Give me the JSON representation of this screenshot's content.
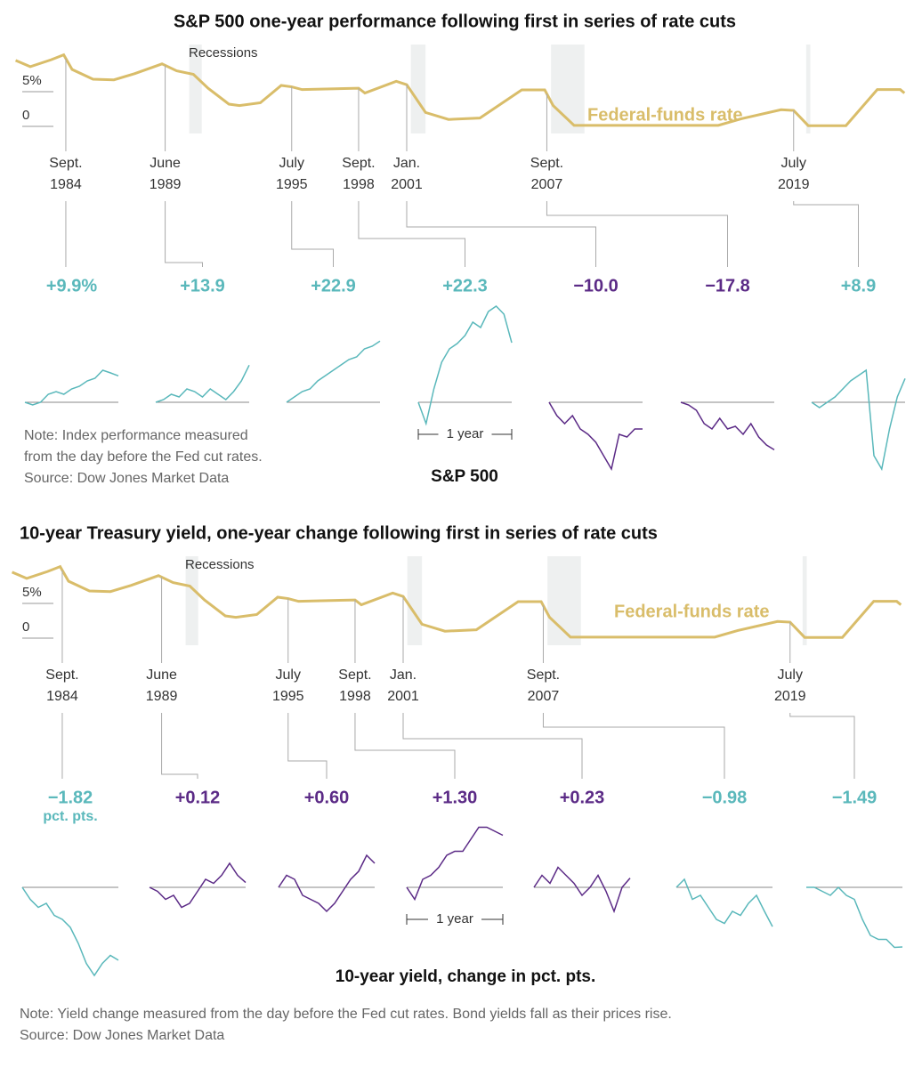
{
  "chart_data": [
    {
      "type": "small-multiples",
      "title": "S&P 500 one-year performance following first in series of rate cuts",
      "recessions_label": "Recessions",
      "rate_label": "Federal-funds rate",
      "rate_color": "#d9bd6a",
      "ylim": [
        0,
        10
      ],
      "yticks": [
        {
          "value": 5,
          "label": "5%"
        },
        0
      ],
      "rate": {
        "x": [
          1982.3,
          1983,
          1984,
          1984.6,
          1985,
          1986,
          1987,
          1988,
          1989.3,
          1990,
          1990.8,
          1991.5,
          1992.5,
          1993,
          1994,
          1995,
          1995.5,
          1996,
          1998.7,
          1999,
          2000.5,
          2001,
          2001.9,
          2003,
          2004.5,
          2006.5,
          2007.6,
          2008,
          2009,
          2015.9,
          2017,
          2018.9,
          2019.5,
          2020.2,
          2022,
          2023.5,
          2024.6,
          2024.8
        ],
        "values": [
          9.5,
          8.6,
          9.6,
          10.3,
          8.2,
          6.8,
          6.7,
          7.6,
          9.0,
          8.0,
          7.5,
          5.5,
          3.2,
          3,
          3.4,
          5.9,
          5.7,
          5.3,
          5.5,
          4.8,
          6.5,
          6,
          2,
          1,
          1.2,
          5.25,
          5.25,
          3,
          0.15,
          0.15,
          1.1,
          2.4,
          2.3,
          0.1,
          0.1,
          5.3,
          5.3,
          4.8
        ]
      },
      "recessions": [
        [
          1990.6,
          1991.2
        ],
        [
          2001.2,
          2001.9
        ],
        [
          2007.9,
          2009.5
        ],
        [
          2020.1,
          2020.3
        ]
      ],
      "events": [
        {
          "x": 1984.7,
          "date_label": [
            "Sept.",
            "1984"
          ],
          "value_label": "+9.9%",
          "color": "#5ab8bb",
          "values": [
            0,
            -1,
            0,
            3,
            4,
            3,
            5,
            6,
            8,
            9,
            12,
            11,
            9.9
          ]
        },
        {
          "x": 1989.45,
          "date_label": [
            "June",
            "1989"
          ],
          "value_label": "+13.9",
          "color": "#5ab8bb",
          "values": [
            0,
            1,
            3,
            2,
            5,
            4,
            2,
            5,
            3,
            1,
            4,
            8,
            13.9
          ]
        },
        {
          "x": 1995.5,
          "date_label": [
            "July",
            "1995"
          ],
          "value_label": "+22.9",
          "color": "#5ab8bb",
          "values": [
            0,
            2,
            4,
            5,
            8,
            10,
            12,
            14,
            16,
            17,
            20,
            21,
            22.9
          ]
        },
        {
          "x": 1998.7,
          "date_label": [
            "Sept.",
            "1998"
          ],
          "value_label": "+22.3",
          "color": "#5ab8bb",
          "values": [
            0,
            -8,
            5,
            15,
            20,
            22,
            25,
            30,
            28,
            34,
            36,
            33,
            22.3
          ]
        },
        {
          "x": 2001.0,
          "date_label": [
            "Jan.",
            "2001"
          ],
          "value_label": "−10.0",
          "color": "#5b2a86",
          "values": [
            0,
            -5,
            -8,
            -5,
            -10,
            -12,
            -15,
            -20,
            -25,
            -12,
            -13,
            -10,
            -10.0
          ]
        },
        {
          "x": 2007.7,
          "date_label": [
            "Sept.",
            "2007"
          ],
          "value_label": "−17.8",
          "color": "#5b2a86",
          "values": [
            0,
            -1,
            -3,
            -8,
            -10,
            -6,
            -10,
            -9,
            -12,
            -8,
            -13,
            -16,
            -17.8
          ]
        },
        {
          "x": 2019.5,
          "date_label": [
            "July",
            "2019"
          ],
          "value_label": "+8.9",
          "color": "#5ab8bb",
          "values": [
            0,
            -2,
            0,
            2,
            5,
            8,
            10,
            12,
            -20,
            -25,
            -10,
            2,
            8.9
          ]
        }
      ],
      "year_label": "1 year",
      "section_label": "S&P 500",
      "note": [
        "Note: Index performance measured",
        "from the day before the Fed cut rates."
      ],
      "source": "Source: Dow Jones Market Data"
    },
    {
      "type": "small-multiples",
      "title": "10-year Treasury yield, one-year change following first in series of rate cuts",
      "recessions_label": "Recessions",
      "rate_label": "Federal-funds rate",
      "rate_color": "#d9bd6a",
      "ylim": [
        0,
        10
      ],
      "yticks": [
        {
          "value": 5,
          "label": "5%"
        },
        0
      ],
      "rate": {
        "x": [
          1982.3,
          1983,
          1984,
          1984.6,
          1985,
          1986,
          1987,
          1988,
          1989.3,
          1990,
          1990.8,
          1991.5,
          1992.5,
          1993,
          1994,
          1995,
          1995.5,
          1996,
          1998.7,
          1999,
          2000.5,
          2001,
          2001.9,
          2003,
          2004.5,
          2006.5,
          2007.6,
          2008,
          2009,
          2015.9,
          2017,
          2018.9,
          2019.5,
          2020.2,
          2022,
          2023.5,
          2024.6,
          2024.8
        ],
        "values": [
          9.5,
          8.6,
          9.6,
          10.3,
          8.2,
          6.8,
          6.7,
          7.6,
          9.0,
          8.0,
          7.5,
          5.5,
          3.2,
          3,
          3.4,
          5.9,
          5.7,
          5.3,
          5.5,
          4.8,
          6.5,
          6,
          2,
          1,
          1.2,
          5.25,
          5.25,
          3,
          0.15,
          0.15,
          1.1,
          2.4,
          2.3,
          0.1,
          0.1,
          5.3,
          5.3,
          4.8
        ]
      },
      "recessions": [
        [
          1990.6,
          1991.2
        ],
        [
          2001.2,
          2001.9
        ],
        [
          2007.9,
          2009.5
        ],
        [
          2020.1,
          2020.3
        ]
      ],
      "events": [
        {
          "x": 1984.7,
          "date_label": [
            "Sept.",
            "1984"
          ],
          "value_label": "−1.82",
          "color": "#5ab8bb",
          "values": [
            0,
            -0.3,
            -0.5,
            -0.4,
            -0.7,
            -0.8,
            -1.0,
            -1.4,
            -1.9,
            -2.2,
            -1.9,
            -1.7,
            -1.82
          ]
        },
        {
          "x": 1989.45,
          "date_label": [
            "June",
            "1989"
          ],
          "value_label": "+0.12",
          "color": "#5b2a86",
          "values": [
            0,
            -0.1,
            -0.3,
            -0.2,
            -0.5,
            -0.4,
            -0.1,
            0.2,
            0.1,
            0.3,
            0.6,
            0.3,
            0.12
          ]
        },
        {
          "x": 1995.5,
          "date_label": [
            "July",
            "1995"
          ],
          "value_label": "+0.60",
          "color": "#5b2a86",
          "values": [
            0,
            0.3,
            0.2,
            -0.2,
            -0.3,
            -0.4,
            -0.6,
            -0.4,
            -0.1,
            0.2,
            0.4,
            0.8,
            0.6
          ]
        },
        {
          "x": 1998.7,
          "date_label": [
            "Sept.",
            "1998"
          ],
          "value_label": "+1.30",
          "color": "#5b2a86",
          "values": [
            0,
            -0.3,
            0.2,
            0.3,
            0.5,
            0.8,
            0.9,
            0.9,
            1.2,
            1.5,
            1.5,
            1.4,
            1.3
          ]
        },
        {
          "x": 2001.0,
          "date_label": [
            "Jan.",
            "2001"
          ],
          "value_label": "+0.23",
          "color": "#5b2a86",
          "values": [
            0,
            0.3,
            0.1,
            0.5,
            0.3,
            0.1,
            -0.2,
            0.0,
            0.3,
            -0.1,
            -0.6,
            0.0,
            0.23
          ]
        },
        {
          "x": 2007.7,
          "date_label": [
            "Sept.",
            "2007"
          ],
          "value_label": "−0.98",
          "color": "#5ab8bb",
          "values": [
            0,
            0.2,
            -0.3,
            -0.2,
            -0.5,
            -0.8,
            -0.9,
            -0.6,
            -0.7,
            -0.4,
            -0.2,
            -0.6,
            -0.98
          ]
        },
        {
          "x": 2019.5,
          "date_label": [
            "July",
            "2019"
          ],
          "value_label": "−1.49",
          "color": "#5ab8bb",
          "values": [
            0,
            0,
            -0.1,
            -0.2,
            0,
            -0.2,
            -0.3,
            -0.8,
            -1.2,
            -1.3,
            -1.3,
            -1.5,
            -1.49
          ]
        }
      ],
      "unit_label": "pct. pts.",
      "year_label": "1 year",
      "section_label": "10-year yield, change in pct. pts.",
      "note": [
        "Note: Yield change measured from the day before the Fed cut rates. Bond yields fall as their prices rise."
      ],
      "source": "Source: Dow Jones Market Data"
    }
  ]
}
